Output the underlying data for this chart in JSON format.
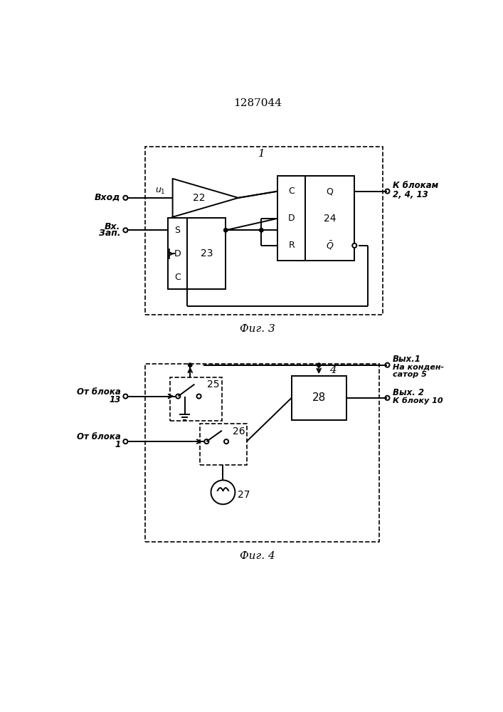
{
  "title": "1287044",
  "fig3_label": "Фиг. 3",
  "fig4_label": "Фиг. 4",
  "bg_color": "#ffffff",
  "line_color": "#000000",
  "text_color": "#000000"
}
